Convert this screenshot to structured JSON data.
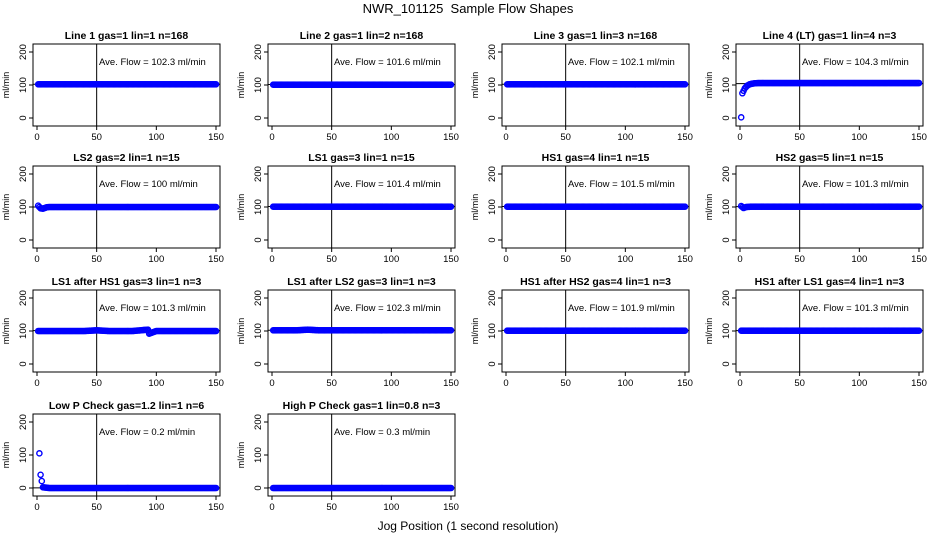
{
  "page": {
    "title": "NWR_101125  Sample Flow Shapes",
    "xlabel": "Jog Position (1 second resolution)"
  },
  "colors": {
    "points": "#0000ff",
    "axes": "#000000",
    "background": "#ffffff"
  },
  "chart_data": [
    {
      "type": "scatter",
      "title": "Line 1 gas=1 lin=1 n=168",
      "ylabel": "ml/min",
      "xlim": [
        0,
        150
      ],
      "ylim": [
        0,
        200
      ],
      "xticks": [
        0,
        50,
        100,
        150
      ],
      "yticks": [
        0,
        100,
        200
      ],
      "vline": 50,
      "hline": 102.3,
      "annotation": "Ave. Flow =  102.3  ml/min",
      "series": [
        {
          "x": [
            1,
            2,
            3,
            5,
            10,
            20,
            40,
            60,
            80,
            100,
            120,
            140,
            150
          ],
          "y": [
            102,
            102,
            102,
            102,
            102,
            102,
            102,
            102,
            102,
            102,
            102,
            102,
            102
          ]
        }
      ]
    },
    {
      "type": "scatter",
      "title": "Line 2 gas=1 lin=2 n=168",
      "ylabel": "ml/min",
      "xlim": [
        0,
        150
      ],
      "ylim": [
        0,
        200
      ],
      "xticks": [
        0,
        50,
        100,
        150
      ],
      "yticks": [
        0,
        100,
        200
      ],
      "vline": 50,
      "hline": 101.6,
      "annotation": "Ave. Flow =  101.6  ml/min",
      "series": [
        {
          "x": [
            1,
            2,
            3,
            5,
            10,
            20,
            40,
            60,
            80,
            100,
            120,
            140,
            150
          ],
          "y": [
            101,
            101,
            101,
            101,
            101,
            101,
            101,
            101,
            101,
            101,
            101,
            101,
            101
          ]
        }
      ]
    },
    {
      "type": "scatter",
      "title": "Line 3 gas=1 lin=3 n=168",
      "ylabel": "ml/min",
      "xlim": [
        0,
        150
      ],
      "ylim": [
        0,
        200
      ],
      "xticks": [
        0,
        50,
        100,
        150
      ],
      "yticks": [
        0,
        100,
        200
      ],
      "vline": 50,
      "hline": 102.1,
      "annotation": "Ave. Flow =  102.1  ml/min",
      "series": [
        {
          "x": [
            1,
            2,
            3,
            5,
            10,
            20,
            40,
            60,
            80,
            100,
            120,
            140,
            150
          ],
          "y": [
            102,
            102,
            102,
            102,
            102,
            102,
            102,
            102,
            102,
            102,
            102,
            102,
            102
          ]
        }
      ]
    },
    {
      "type": "scatter",
      "title": "Line 4 (LT) gas=1 lin=4 n=3",
      "ylabel": "ml/min",
      "xlim": [
        0,
        150
      ],
      "ylim": [
        0,
        200
      ],
      "xticks": [
        0,
        50,
        100,
        150
      ],
      "yticks": [
        0,
        100,
        200
      ],
      "vline": 50,
      "hline": 104.3,
      "annotation": "Ave. Flow =  104.3  ml/min",
      "series": [
        {
          "x": [
            1,
            2,
            4,
            6,
            8,
            10,
            12,
            15,
            20,
            30,
            40,
            60,
            80,
            100,
            120,
            140,
            150
          ],
          "y": [
            2,
            75,
            90,
            98,
            102,
            104,
            105,
            106,
            106,
            106,
            106,
            106,
            106,
            106,
            106,
            106,
            106
          ]
        }
      ]
    },
    {
      "type": "scatter",
      "title": "LS2 gas=2 lin=1 n=15",
      "ylabel": "ml/min",
      "xlim": [
        0,
        150
      ],
      "ylim": [
        0,
        200
      ],
      "xticks": [
        0,
        50,
        100,
        150
      ],
      "yticks": [
        0,
        100,
        200
      ],
      "vline": 50,
      "hline": 100,
      "annotation": "Ave. Flow =  100  ml/min",
      "series": [
        {
          "x": [
            1,
            3,
            5,
            8,
            10,
            20,
            40,
            60,
            80,
            100,
            120,
            140,
            150
          ],
          "y": [
            104,
            96,
            95,
            99,
            100,
            100,
            100,
            100,
            100,
            100,
            100,
            100,
            100
          ]
        }
      ]
    },
    {
      "type": "scatter",
      "title": "LS1 gas=3 lin=1 n=15",
      "ylabel": "ml/min",
      "xlim": [
        0,
        150
      ],
      "ylim": [
        0,
        200
      ],
      "xticks": [
        0,
        50,
        100,
        150
      ],
      "yticks": [
        0,
        100,
        200
      ],
      "vline": 50,
      "hline": 101.4,
      "annotation": "Ave. Flow =  101.4  ml/min",
      "series": [
        {
          "x": [
            1,
            2,
            3,
            5,
            10,
            20,
            40,
            60,
            80,
            100,
            120,
            140,
            150
          ],
          "y": [
            101,
            101,
            101,
            101,
            101,
            101,
            101,
            101,
            101,
            101,
            101,
            101,
            101
          ]
        }
      ]
    },
    {
      "type": "scatter",
      "title": "HS1 gas=4 lin=1 n=15",
      "ylabel": "ml/min",
      "xlim": [
        0,
        150
      ],
      "ylim": [
        0,
        200
      ],
      "xticks": [
        0,
        50,
        100,
        150
      ],
      "yticks": [
        0,
        100,
        200
      ],
      "vline": 50,
      "hline": 101.5,
      "annotation": "Ave. Flow =  101.5  ml/min",
      "series": [
        {
          "x": [
            1,
            2,
            3,
            5,
            10,
            20,
            40,
            60,
            80,
            100,
            120,
            140,
            150
          ],
          "y": [
            101,
            101,
            101,
            101,
            101,
            101,
            101,
            101,
            101,
            101,
            101,
            101,
            101
          ]
        }
      ]
    },
    {
      "type": "scatter",
      "title": "HS2 gas=5 lin=1 n=15",
      "ylabel": "ml/min",
      "xlim": [
        0,
        150
      ],
      "ylim": [
        0,
        200
      ],
      "xticks": [
        0,
        50,
        100,
        150
      ],
      "yticks": [
        0,
        100,
        200
      ],
      "vline": 50,
      "hline": 101.3,
      "annotation": "Ave. Flow =  101.3  ml/min",
      "series": [
        {
          "x": [
            1,
            3,
            5,
            10,
            20,
            40,
            60,
            80,
            100,
            120,
            140,
            150
          ],
          "y": [
            103,
            97,
            100,
            101,
            101,
            101,
            101,
            101,
            101,
            101,
            101,
            101
          ]
        }
      ]
    },
    {
      "type": "scatter",
      "title": "LS1 after HS1 gas=3 lin=1 n=3",
      "ylabel": "ml/min",
      "xlim": [
        0,
        150
      ],
      "ylim": [
        0,
        200
      ],
      "xticks": [
        0,
        50,
        100,
        150
      ],
      "yticks": [
        0,
        100,
        200
      ],
      "vline": 50,
      "hline": 101.3,
      "annotation": "Ave. Flow =  101.3  ml/min",
      "series": [
        {
          "x": [
            1,
            2,
            3,
            5,
            10,
            20,
            40,
            50,
            60,
            80,
            93,
            94,
            100,
            120,
            140,
            150
          ],
          "y": [
            100,
            100,
            100,
            100,
            100,
            100,
            100,
            102,
            100,
            100,
            104,
            92,
            100,
            100,
            100,
            100
          ]
        }
      ]
    },
    {
      "type": "scatter",
      "title": "LS1 after LS2 gas=3 lin=1 n=3",
      "ylabel": "ml/min",
      "xlim": [
        0,
        150
      ],
      "ylim": [
        0,
        200
      ],
      "xticks": [
        0,
        50,
        100,
        150
      ],
      "yticks": [
        0,
        100,
        200
      ],
      "vline": 50,
      "hline": 102.3,
      "annotation": "Ave. Flow =  102.3  ml/min",
      "series": [
        {
          "x": [
            1,
            2,
            3,
            5,
            10,
            20,
            30,
            40,
            60,
            80,
            100,
            120,
            140,
            150
          ],
          "y": [
            102,
            102,
            102,
            102,
            102,
            102,
            104,
            102,
            102,
            102,
            102,
            102,
            102,
            102
          ]
        }
      ]
    },
    {
      "type": "scatter",
      "title": "HS1 after HS2 gas=4 lin=1 n=3",
      "ylabel": "ml/min",
      "xlim": [
        0,
        150
      ],
      "ylim": [
        0,
        200
      ],
      "xticks": [
        0,
        50,
        100,
        150
      ],
      "yticks": [
        0,
        100,
        200
      ],
      "vline": 50,
      "hline": 101.9,
      "annotation": "Ave. Flow =  101.9  ml/min",
      "series": [
        {
          "x": [
            1,
            2,
            3,
            5,
            10,
            20,
            40,
            60,
            80,
            100,
            120,
            140,
            150
          ],
          "y": [
            101,
            101,
            101,
            101,
            101,
            101,
            101,
            101,
            101,
            101,
            101,
            101,
            101
          ]
        }
      ]
    },
    {
      "type": "scatter",
      "title": "HS1 after LS1 gas=4 lin=1 n=3",
      "ylabel": "ml/min",
      "xlim": [
        0,
        150
      ],
      "ylim": [
        0,
        200
      ],
      "xticks": [
        0,
        50,
        100,
        150
      ],
      "yticks": [
        0,
        100,
        200
      ],
      "vline": 50,
      "hline": 101.3,
      "annotation": "Ave. Flow =  101.3  ml/min",
      "series": [
        {
          "x": [
            1,
            2,
            3,
            5,
            10,
            20,
            40,
            60,
            80,
            100,
            120,
            140,
            150
          ],
          "y": [
            101,
            101,
            101,
            101,
            101,
            101,
            101,
            101,
            101,
            101,
            101,
            101,
            101
          ]
        }
      ]
    },
    {
      "type": "scatter",
      "title": "Low P Check gas=1.2 lin=1 n=6",
      "ylabel": "ml/min",
      "xlim": [
        0,
        150
      ],
      "ylim": [
        0,
        200
      ],
      "xticks": [
        0,
        50,
        100,
        150
      ],
      "yticks": [
        0,
        100,
        200
      ],
      "vline": 50,
      "hline": 0.2,
      "annotation": "Ave. Flow =  0.2  ml/min",
      "series": [
        {
          "x": [
            2,
            3,
            5,
            8,
            10,
            20,
            40,
            60,
            80,
            100,
            120,
            140,
            150
          ],
          "y": [
            105,
            40,
            2,
            1,
            0,
            0,
            0,
            0,
            0,
            0,
            0,
            0,
            0
          ]
        }
      ]
    },
    {
      "type": "scatter",
      "title": "High P Check gas=1 lin=0.8 n=3",
      "ylabel": "ml/min",
      "xlim": [
        0,
        150
      ],
      "ylim": [
        0,
        200
      ],
      "xticks": [
        0,
        50,
        100,
        150
      ],
      "yticks": [
        0,
        100,
        200
      ],
      "vline": 50,
      "hline": 0.3,
      "annotation": "Ave. Flow =  0.3  ml/min",
      "series": [
        {
          "x": [
            1,
            2,
            3,
            5,
            10,
            20,
            40,
            60,
            80,
            100,
            120,
            140,
            150
          ],
          "y": [
            0,
            0,
            0,
            0,
            0,
            0,
            0,
            0,
            0,
            0,
            0,
            0,
            0
          ]
        }
      ]
    }
  ]
}
